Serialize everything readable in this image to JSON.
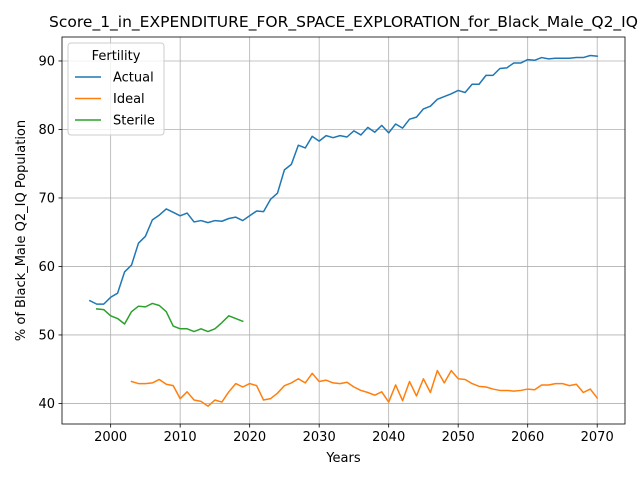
{
  "chart_data": {
    "type": "line",
    "title": "Score_1_in_EXPENDITURE_FOR_SPACE_EXPLORATION_for_Black_Male_Q2_IQ",
    "xlabel": "Years",
    "ylabel": "% of Black_Male Q2_IQ Population",
    "xlim": [
      1993,
      2074
    ],
    "ylim": [
      37,
      93.5
    ],
    "xticks": [
      2000,
      2010,
      2020,
      2030,
      2040,
      2050,
      2060,
      2070
    ],
    "yticks": [
      40,
      50,
      60,
      70,
      80,
      90
    ],
    "grid": true,
    "legend": {
      "title": "Fertility",
      "placement": "top-left"
    },
    "series": [
      {
        "name": "Actual",
        "color": "#1f77b4",
        "x": [
          1997,
          1998,
          1999,
          2000,
          2001,
          2002,
          2003,
          2004,
          2005,
          2006,
          2007,
          2008,
          2009,
          2010,
          2011,
          2012,
          2013,
          2014,
          2015,
          2016,
          2017,
          2018,
          2019,
          2020,
          2021,
          2022,
          2023,
          2024,
          2025,
          2026,
          2027,
          2028,
          2029,
          2030,
          2031,
          2032,
          2033,
          2034,
          2035,
          2036,
          2037,
          2038,
          2039,
          2040,
          2041,
          2042,
          2043,
          2044,
          2045,
          2046,
          2047,
          2048,
          2049,
          2050,
          2051,
          2052,
          2053,
          2054,
          2055,
          2056,
          2057,
          2058,
          2059,
          2060,
          2061,
          2062,
          2063,
          2064,
          2065,
          2066,
          2067,
          2068,
          2069,
          2070
        ],
        "values": [
          55.0,
          54.5,
          54.5,
          55.5,
          56.1,
          59.2,
          60.2,
          63.4,
          64.4,
          66.8,
          67.5,
          68.4,
          67.9,
          67.4,
          67.8,
          66.5,
          66.7,
          66.4,
          66.7,
          66.6,
          67.0,
          67.2,
          66.7,
          67.4,
          68.1,
          68.0,
          69.8,
          70.7,
          74.1,
          74.9,
          77.7,
          77.3,
          79.0,
          78.3,
          79.1,
          78.8,
          79.1,
          78.9,
          79.8,
          79.2,
          80.3,
          79.6,
          80.6,
          79.5,
          80.8,
          80.2,
          81.5,
          81.8,
          83.0,
          83.4,
          84.4,
          84.8,
          85.2,
          85.7,
          85.4,
          86.6,
          86.6,
          87.9,
          87.9,
          88.9,
          89.0,
          89.7,
          89.7,
          90.2,
          90.1,
          90.5,
          90.3,
          90.4,
          90.4,
          90.4,
          90.5,
          90.5,
          90.8,
          90.7
        ]
      },
      {
        "name": "Ideal",
        "color": "#ff7f0e",
        "x": [
          2003,
          2004,
          2005,
          2006,
          2007,
          2008,
          2009,
          2010,
          2011,
          2012,
          2013,
          2014,
          2015,
          2016,
          2017,
          2018,
          2019,
          2020,
          2021,
          2022,
          2023,
          2024,
          2025,
          2026,
          2027,
          2028,
          2029,
          2030,
          2031,
          2032,
          2033,
          2034,
          2035,
          2036,
          2037,
          2038,
          2039,
          2040,
          2041,
          2042,
          2043,
          2044,
          2045,
          2046,
          2047,
          2048,
          2049,
          2050,
          2051,
          2052,
          2053,
          2054,
          2055,
          2056,
          2057,
          2058,
          2059,
          2060,
          2061,
          2062,
          2063,
          2064,
          2065,
          2066,
          2067,
          2068,
          2069,
          2070
        ],
        "values": [
          43.2,
          42.9,
          42.9,
          43.0,
          43.5,
          42.8,
          42.6,
          40.7,
          41.7,
          40.5,
          40.3,
          39.6,
          40.5,
          40.2,
          41.7,
          42.9,
          42.4,
          42.9,
          42.6,
          40.5,
          40.7,
          41.5,
          42.6,
          43.0,
          43.6,
          43.0,
          44.4,
          43.2,
          43.4,
          43.0,
          42.9,
          43.1,
          42.4,
          41.9,
          41.6,
          41.2,
          41.7,
          40.2,
          42.7,
          40.4,
          43.2,
          41.1,
          43.6,
          41.6,
          44.8,
          43.0,
          44.8,
          43.6,
          43.5,
          42.9,
          42.5,
          42.4,
          42.1,
          41.9,
          41.9,
          41.8,
          41.9,
          42.1,
          42.0,
          42.7,
          42.7,
          42.9,
          42.9,
          42.6,
          42.8,
          41.6,
          42.1,
          40.8
        ]
      },
      {
        "name": "Sterile",
        "color": "#2ca02c",
        "x": [
          1998,
          1999,
          2000,
          2001,
          2002,
          2003,
          2004,
          2005,
          2006,
          2007,
          2008,
          2009,
          2010,
          2011,
          2012,
          2013,
          2014,
          2015,
          2016,
          2017,
          2018,
          2019
        ],
        "values": [
          53.8,
          53.7,
          52.8,
          52.4,
          51.6,
          53.4,
          54.2,
          54.1,
          54.6,
          54.3,
          53.4,
          51.3,
          50.9,
          50.9,
          50.5,
          50.9,
          50.5,
          50.9,
          51.8,
          52.8,
          52.4,
          52.0
        ]
      }
    ]
  }
}
